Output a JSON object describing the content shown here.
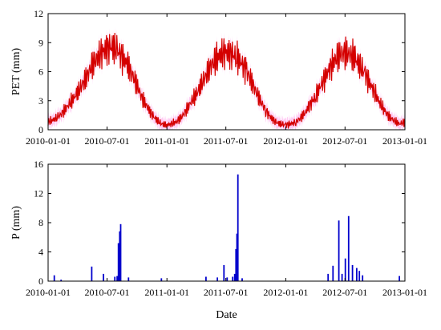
{
  "chart_data": [
    {
      "type": "line",
      "ylabel": "PET (mm)",
      "xlabel": "",
      "xlim": [
        "2010-01-01",
        "2013-01-01"
      ],
      "ylim": [
        0,
        12
      ],
      "x_ticks": [
        "2010-01-01",
        "2010-07-01",
        "2011-01-01",
        "2011-07-01",
        "2012-01-01",
        "2012-07-01",
        "2013-01-01"
      ],
      "y_ticks": [
        0,
        3,
        6,
        9,
        12
      ],
      "grid": false,
      "legend": "none",
      "series": [
        {
          "color": "#d40000",
          "band_color": "#ff66dd",
          "values_description_free": true,
          "x": [
            "2010-01-01",
            "2010-01-15",
            "2010-02-01",
            "2010-02-15",
            "2010-03-01",
            "2010-03-15",
            "2010-04-01",
            "2010-04-15",
            "2010-05-01",
            "2010-05-15",
            "2010-06-01",
            "2010-06-15",
            "2010-07-01",
            "2010-07-15",
            "2010-08-01",
            "2010-08-15",
            "2010-09-01",
            "2010-09-15",
            "2010-10-01",
            "2010-10-15",
            "2010-11-01",
            "2010-11-15",
            "2010-12-01",
            "2010-12-15",
            "2011-01-01",
            "2011-01-15",
            "2011-02-01",
            "2011-02-15",
            "2011-03-01",
            "2011-03-15",
            "2011-04-01",
            "2011-04-15",
            "2011-05-01",
            "2011-05-15",
            "2011-06-01",
            "2011-06-15",
            "2011-07-01",
            "2011-07-15",
            "2011-08-01",
            "2011-08-15",
            "2011-09-01",
            "2011-09-15",
            "2011-10-01",
            "2011-10-15",
            "2011-11-01",
            "2011-11-15",
            "2011-12-01",
            "2011-12-15",
            "2012-01-01",
            "2012-01-15",
            "2012-02-01",
            "2012-02-15",
            "2012-03-01",
            "2012-03-15",
            "2012-04-01",
            "2012-04-15",
            "2012-05-01",
            "2012-05-15",
            "2012-06-01",
            "2012-06-15",
            "2012-07-01",
            "2012-07-15",
            "2012-08-01",
            "2012-08-15",
            "2012-09-01",
            "2012-09-15",
            "2012-10-01",
            "2012-10-15",
            "2012-11-01",
            "2012-11-15",
            "2012-12-01",
            "2012-12-15",
            "2013-01-01"
          ],
          "values": [
            0.8,
            1.0,
            1.3,
            1.8,
            2.4,
            3.0,
            3.8,
            4.6,
            5.6,
            6.6,
            7.4,
            8.0,
            8.4,
            8.6,
            8.2,
            7.6,
            6.8,
            5.8,
            4.6,
            3.4,
            2.4,
            1.6,
            1.0,
            0.6,
            0.5,
            0.6,
            0.9,
            1.3,
            2.0,
            2.8,
            3.6,
            4.6,
            5.6,
            6.6,
            7.2,
            7.8,
            8.0,
            7.9,
            7.6,
            7.0,
            6.2,
            5.2,
            4.0,
            3.0,
            2.0,
            1.3,
            0.8,
            0.6,
            0.5,
            0.6,
            0.8,
            1.2,
            1.8,
            2.6,
            3.4,
            4.4,
            5.4,
            6.4,
            7.2,
            7.8,
            8.0,
            7.8,
            7.4,
            6.6,
            5.8,
            4.8,
            3.8,
            2.8,
            1.9,
            1.3,
            0.9,
            0.6,
            0.8
          ]
        }
      ]
    },
    {
      "type": "bar",
      "xlabel": "Date",
      "ylabel": "P (mm)",
      "xlim": [
        "2010-01-01",
        "2013-01-01"
      ],
      "ylim": [
        0,
        16
      ],
      "x_ticks": [
        "2010-01-01",
        "2010-07-01",
        "2011-01-01",
        "2011-07-01",
        "2012-01-01",
        "2012-07-01",
        "2013-01-01"
      ],
      "y_ticks": [
        0,
        4,
        8,
        12,
        16
      ],
      "grid": false,
      "legend": "none",
      "series": [
        {
          "color": "#0000cc",
          "x": [
            "2010-01-20",
            "2010-02-10",
            "2010-05-15",
            "2010-06-20",
            "2010-07-25",
            "2010-08-01",
            "2010-08-05",
            "2010-08-09",
            "2010-08-12",
            "2010-09-05",
            "2010-12-15",
            "2011-05-01",
            "2011-06-05",
            "2011-06-25",
            "2011-07-05",
            "2011-07-22",
            "2011-07-28",
            "2011-08-01",
            "2011-08-04",
            "2011-08-07",
            "2011-08-20",
            "2012-05-10",
            "2012-05-25",
            "2012-06-12",
            "2012-06-22",
            "2012-07-02",
            "2012-07-12",
            "2012-07-24",
            "2012-08-06",
            "2012-08-14",
            "2012-08-24",
            "2012-12-15"
          ],
          "values": [
            0.8,
            0.2,
            2.0,
            1.0,
            0.6,
            0.7,
            5.2,
            6.8,
            7.8,
            0.5,
            0.4,
            0.6,
            0.5,
            2.2,
            0.5,
            0.6,
            1.0,
            4.4,
            6.5,
            14.6,
            0.4,
            1.0,
            2.1,
            8.3,
            1.0,
            3.1,
            8.9,
            2.2,
            1.8,
            1.4,
            0.8,
            0.7
          ]
        }
      ]
    }
  ]
}
